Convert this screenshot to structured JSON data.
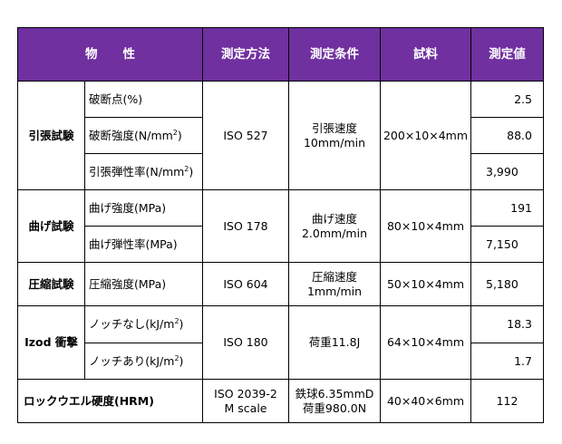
{
  "header": {
    "property_a": "物",
    "property_b": "性",
    "method": "測定方法",
    "condition": "測定条件",
    "specimen": "試料",
    "value": "測定値"
  },
  "tensile": {
    "group": "引張試験",
    "items": [
      {
        "label": "破断点(%)",
        "value": "2.5"
      },
      {
        "label": "破断強度(N/mm",
        "sup": "2",
        "close": ")",
        "value": "88.0"
      },
      {
        "label": "引張弾性率(N/mm",
        "sup": "2",
        "close": ")",
        "value": "3,990"
      }
    ],
    "method": "ISO 527",
    "condition_1": "引張速度",
    "condition_2": "10mm/min",
    "specimen": "200×10×4mm"
  },
  "bending": {
    "group": "曲げ試験",
    "items": [
      {
        "label": "曲げ強度(MPa)",
        "value": "191"
      },
      {
        "label": "曲げ弾性率(MPa)",
        "value": "7,150"
      }
    ],
    "method": "ISO 178",
    "condition_1": "曲げ速度",
    "condition_2": "2.0mm/min",
    "specimen": "80×10×4mm"
  },
  "compression": {
    "group": "圧縮試験",
    "items": [
      {
        "label": "圧縮強度(MPa)",
        "value": "5,180"
      }
    ],
    "method": "ISO 604",
    "condition_1": "圧縮速度",
    "condition_2": "1mm/min",
    "specimen": "50×10×4mm"
  },
  "izod": {
    "group": "Izod 衝撃",
    "items": [
      {
        "label": "ノッチなし(kJ/m",
        "sup": "2",
        "close": ")",
        "value": "18.3"
      },
      {
        "label": "ノッチあり(kJ/m",
        "sup": "2",
        "close": ")",
        "value": "1.7"
      }
    ],
    "method": "ISO 180",
    "condition": "荷重11.8J",
    "specimen": "64×10×4mm"
  },
  "rockwell": {
    "label": "ロックウエル硬度(HRM)",
    "method_1": "ISO 2039-2",
    "method_2": "M scale",
    "condition_1": "鉄球6.35mmD",
    "condition_2": "荷重980.0N",
    "specimen": "40×40×6mm",
    "value": "112"
  },
  "colors": {
    "header_bg": "#7030a0",
    "header_text": "#ffffff",
    "border": "#000000"
  }
}
